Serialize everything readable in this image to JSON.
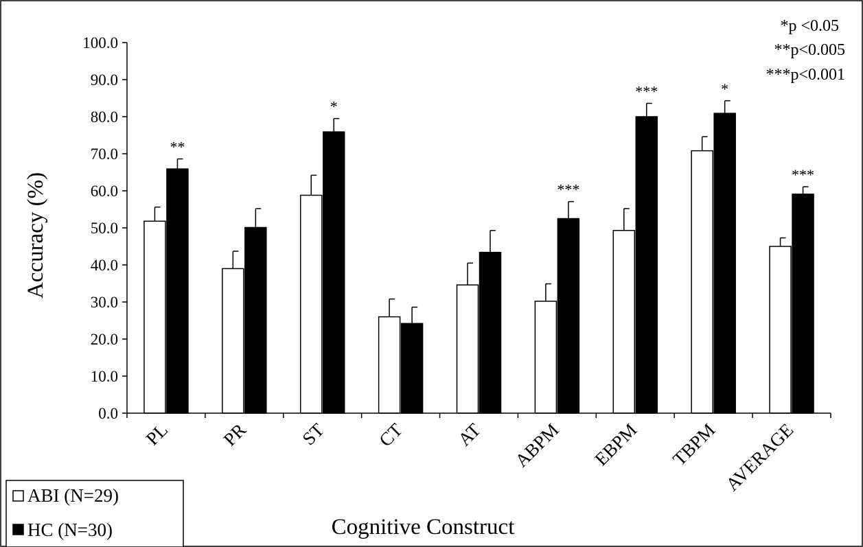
{
  "chart_data": {
    "type": "bar",
    "title": "",
    "xlabel": "Cognitive Construct",
    "ylabel": "Accuracy (%)",
    "ylim": [
      0,
      100
    ],
    "yticks": [
      "0.0",
      "10.0",
      "20.0",
      "30.0",
      "40.0",
      "50.0",
      "60.0",
      "70.0",
      "80.0",
      "90.0",
      "100.0"
    ],
    "categories": [
      "PL",
      "PR",
      "ST",
      "CT",
      "AT",
      "ABPM",
      "EBPM",
      "TBPM",
      "AVERAGE"
    ],
    "series": [
      {
        "name": "ABI (N=29)",
        "color": "#ffffff",
        "values": [
          51.8,
          39.0,
          58.8,
          26.0,
          34.6,
          30.2,
          49.3,
          70.8,
          45.0
        ],
        "errors": [
          3.8,
          4.7,
          5.4,
          4.8,
          5.9,
          4.7,
          5.9,
          3.8,
          2.3
        ]
      },
      {
        "name": "HC (N=30)",
        "color": "#000000",
        "values": [
          65.9,
          50.1,
          75.9,
          24.2,
          43.4,
          52.5,
          80.0,
          80.9,
          59.1
        ],
        "errors": [
          2.7,
          5.1,
          3.6,
          4.4,
          5.9,
          4.6,
          3.6,
          3.4,
          2.0
        ]
      }
    ],
    "significance": [
      "**",
      "",
      "*",
      "",
      "",
      "***",
      "***",
      "*",
      "***"
    ],
    "significance_key": [
      "*p <0.05",
      "**p<0.005",
      "***p<0.001"
    ],
    "legend_position": "bottom-left",
    "grid": false
  }
}
